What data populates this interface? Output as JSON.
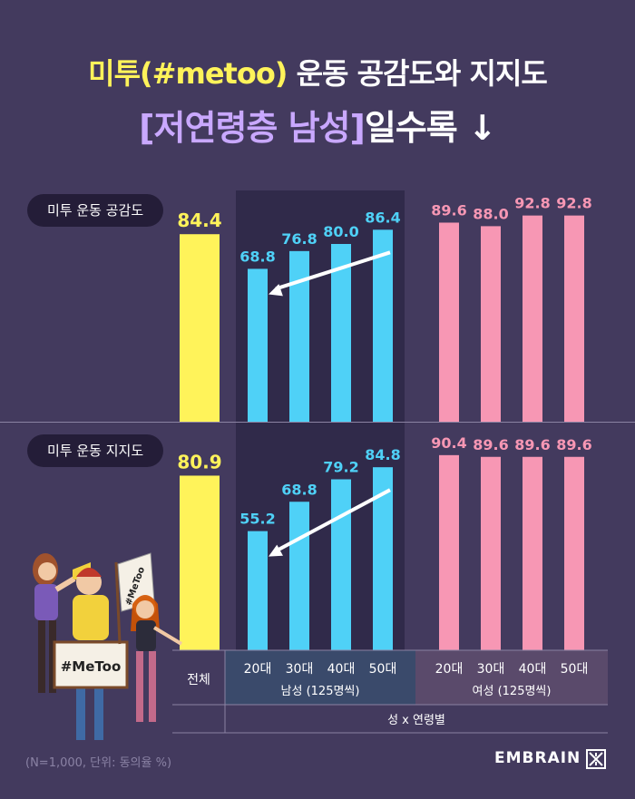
{
  "title": {
    "line1_highlight": "미투(#metoo)",
    "line1_rest": " 운동 공감도와 지지도",
    "line2_highlight": "[저연령층 남성]",
    "line2_rest": "일수록 ↓"
  },
  "note": "(N=1,000, 단위: 동의율 %)",
  "brand": "EMBRAIN",
  "colors": {
    "total": "#fff35a",
    "male": "#4fd1f7",
    "female": "#f797b4",
    "female_label": "#f797b4",
    "male_label": "#4fd1f7",
    "background": "#433a5e",
    "male_band": "#302a4a",
    "female_band": "#4a405f"
  },
  "axis": {
    "total_label": "전체",
    "male_group_label": "남성 (125명씩)",
    "female_group_label": "여성 (125명씩)",
    "x_title": "성 x 연령별"
  },
  "illustration": {
    "sign_text": "#MeToo",
    "flag_text": "#MeToo"
  },
  "chart_data": [
    {
      "type": "bar",
      "title": "미투 운동 공감도",
      "categories": [
        "전체",
        "20대",
        "30대",
        "40대",
        "50대",
        "20대",
        "30대",
        "40대",
        "50대"
      ],
      "groups": [
        "전체",
        "남성",
        "남성",
        "남성",
        "남성",
        "여성",
        "여성",
        "여성",
        "여성"
      ],
      "values": [
        84.4,
        68.8,
        76.8,
        80.0,
        86.4,
        89.6,
        88.0,
        92.8,
        92.8
      ],
      "value_labels": [
        "84.4",
        "68.8",
        "76.8",
        "80.0",
        "86.4",
        "89.6",
        "88.0",
        "92.8",
        "92.8"
      ],
      "ylim": [
        0,
        100
      ]
    },
    {
      "type": "bar",
      "title": "미투 운동 지지도",
      "categories": [
        "전체",
        "20대",
        "30대",
        "40대",
        "50대",
        "20대",
        "30대",
        "40대",
        "50대"
      ],
      "groups": [
        "전체",
        "남성",
        "남성",
        "남성",
        "남성",
        "여성",
        "여성",
        "여성",
        "여성"
      ],
      "values": [
        80.9,
        55.2,
        68.8,
        79.2,
        84.8,
        90.4,
        89.6,
        89.6,
        89.6
      ],
      "value_labels": [
        "80.9",
        "55.2",
        "68.8",
        "79.2",
        "84.8",
        "90.4",
        "89.6",
        "89.6",
        "89.6"
      ],
      "ylim": [
        0,
        100
      ]
    }
  ]
}
